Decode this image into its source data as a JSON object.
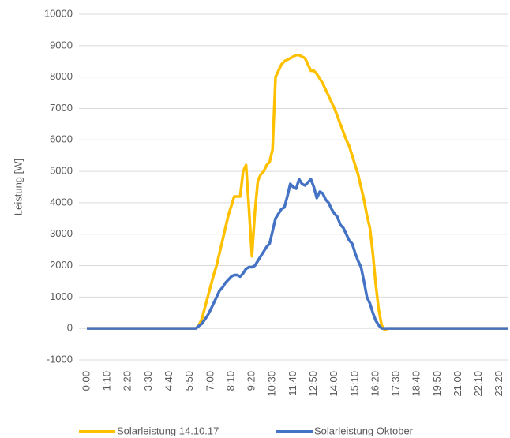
{
  "chart_data": {
    "type": "line",
    "y_axis_label": "Leistung [W]",
    "categories": [
      "0:00",
      null,
      null,
      null,
      null,
      null,
      null,
      "1:10",
      null,
      null,
      null,
      null,
      null,
      null,
      "2:20",
      null,
      null,
      null,
      null,
      null,
      null,
      "3:30",
      null,
      null,
      null,
      null,
      null,
      null,
      "4:40",
      null,
      null,
      null,
      null,
      null,
      null,
      "5:50",
      null,
      null,
      null,
      null,
      null,
      null,
      "7:00",
      null,
      null,
      null,
      null,
      null,
      null,
      "8:10",
      null,
      null,
      null,
      null,
      null,
      null,
      "9:20",
      null,
      null,
      null,
      null,
      null,
      null,
      "10:30",
      null,
      null,
      null,
      null,
      null,
      null,
      "11:40",
      null,
      null,
      null,
      null,
      null,
      null,
      "12:50",
      null,
      null,
      null,
      null,
      null,
      null,
      "14:00",
      null,
      null,
      null,
      null,
      null,
      null,
      "15:10",
      null,
      null,
      null,
      null,
      null,
      null,
      "16:20",
      null,
      null,
      null,
      null,
      null,
      null,
      "17:30",
      null,
      null,
      null,
      null,
      null,
      null,
      "18:40",
      null,
      null,
      null,
      null,
      null,
      null,
      "19:50",
      null,
      null,
      null,
      null,
      null,
      null,
      "21:00",
      null,
      null,
      null,
      null,
      null,
      null,
      "22:10",
      null,
      null,
      null,
      null,
      null,
      null,
      "23:20",
      null,
      null,
      null
    ],
    "series": [
      {
        "name": "Solarleistung 14.10.17",
        "color": "#FFC000",
        "values": [
          0,
          0,
          0,
          0,
          0,
          0,
          0,
          0,
          0,
          0,
          0,
          0,
          0,
          0,
          0,
          0,
          0,
          0,
          0,
          0,
          0,
          0,
          0,
          0,
          0,
          0,
          0,
          0,
          0,
          0,
          0,
          0,
          0,
          0,
          0,
          0,
          0,
          0,
          100,
          300,
          650,
          1000,
          1350,
          1700,
          2000,
          2400,
          2800,
          3200,
          3600,
          3900,
          4200,
          4200,
          4200,
          5000,
          5200,
          3800,
          2300,
          3700,
          4700,
          4900,
          5000,
          5200,
          5300,
          5700,
          8000,
          8200,
          8400,
          8500,
          8550,
          8600,
          8650,
          8700,
          8700,
          8650,
          8600,
          8400,
          8200,
          8200,
          8100,
          7950,
          7800,
          7600,
          7400,
          7200,
          7000,
          6750,
          6500,
          6250,
          6000,
          5800,
          5500,
          5200,
          4900,
          4500,
          4100,
          3600,
          3200,
          2400,
          1400,
          600,
          100,
          -50,
          0,
          0,
          0,
          0,
          0,
          0,
          0,
          0,
          0,
          0,
          0,
          0,
          0,
          0,
          0,
          0,
          0,
          0,
          0,
          0,
          0,
          0,
          0,
          0,
          0,
          0,
          0,
          0,
          0,
          0,
          0,
          0,
          0,
          0,
          0,
          0,
          0,
          0,
          0,
          0,
          0,
          0
        ]
      },
      {
        "name": "Solarleistung Oktober",
        "color": "#4472C4",
        "values": [
          0,
          0,
          0,
          0,
          0,
          0,
          0,
          0,
          0,
          0,
          0,
          0,
          0,
          0,
          0,
          0,
          0,
          0,
          0,
          0,
          0,
          0,
          0,
          0,
          0,
          0,
          0,
          0,
          0,
          0,
          0,
          0,
          0,
          0,
          0,
          0,
          0,
          0,
          80,
          150,
          280,
          420,
          600,
          800,
          1000,
          1200,
          1300,
          1450,
          1550,
          1650,
          1700,
          1700,
          1650,
          1750,
          1900,
          1950,
          1950,
          2000,
          2150,
          2300,
          2450,
          2600,
          2700,
          3100,
          3500,
          3650,
          3800,
          3850,
          4200,
          4600,
          4500,
          4450,
          4750,
          4600,
          4550,
          4650,
          4750,
          4500,
          4150,
          4350,
          4300,
          4100,
          4000,
          3800,
          3650,
          3550,
          3300,
          3200,
          3000,
          2800,
          2700,
          2400,
          2150,
          1950,
          1500,
          1000,
          800,
          500,
          250,
          100,
          0,
          0,
          0,
          0,
          0,
          0,
          0,
          0,
          0,
          0,
          0,
          0,
          0,
          0,
          0,
          0,
          0,
          0,
          0,
          0,
          0,
          0,
          0,
          0,
          0,
          0,
          0,
          0,
          0,
          0,
          0,
          0,
          0,
          0,
          0,
          0,
          0,
          0,
          0,
          0,
          0,
          0,
          0,
          0
        ]
      }
    ],
    "ylim": [
      -1000,
      10000
    ],
    "yticks": [
      -1000,
      0,
      1000,
      2000,
      3000,
      4000,
      5000,
      6000,
      7000,
      8000,
      9000,
      10000
    ],
    "grid": true,
    "legend": "bottom"
  }
}
